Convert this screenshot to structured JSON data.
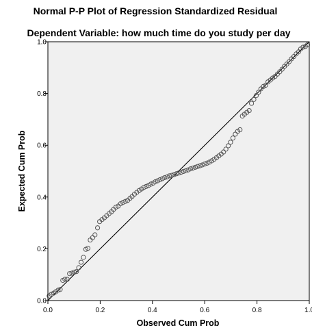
{
  "chart_data": {
    "type": "scatter",
    "title": "Normal P-P Plot of Regression Standardized Residual",
    "subtitle": "Dependent Variable: how much time do you study per day",
    "xlabel": "Observed Cum Prob",
    "ylabel": "Expected Cum Prob",
    "xlim": [
      0.0,
      1.0
    ],
    "ylim": [
      0.0,
      1.0
    ],
    "x_ticks": [
      "0.0",
      "0.2",
      "0.4",
      "0.6",
      "0.8",
      "1.0"
    ],
    "y_ticks": [
      "0.0",
      "0.2",
      "0.4",
      "0.6",
      "0.8",
      "1.0"
    ],
    "x_tick_values": [
      0.0,
      0.2,
      0.4,
      0.6,
      0.8,
      1.0
    ],
    "y_tick_values": [
      0.0,
      0.2,
      0.4,
      0.6,
      0.8,
      1.0
    ],
    "grid": false,
    "plot_background": "#f0f0f0",
    "marker_color": "#555555",
    "reference_line": [
      [
        0.0,
        0.0
      ],
      [
        1.0,
        1.0
      ]
    ],
    "points": [
      [
        0.005,
        0.018
      ],
      [
        0.013,
        0.024
      ],
      [
        0.022,
        0.029
      ],
      [
        0.03,
        0.034
      ],
      [
        0.039,
        0.04
      ],
      [
        0.047,
        0.043
      ],
      [
        0.057,
        0.078
      ],
      [
        0.065,
        0.082
      ],
      [
        0.074,
        0.082
      ],
      [
        0.083,
        0.104
      ],
      [
        0.092,
        0.106
      ],
      [
        0.101,
        0.11
      ],
      [
        0.109,
        0.112
      ],
      [
        0.118,
        0.127
      ],
      [
        0.127,
        0.148
      ],
      [
        0.136,
        0.167
      ],
      [
        0.145,
        0.198
      ],
      [
        0.153,
        0.202
      ],
      [
        0.162,
        0.234
      ],
      [
        0.171,
        0.243
      ],
      [
        0.18,
        0.254
      ],
      [
        0.19,
        0.281
      ],
      [
        0.198,
        0.305
      ],
      [
        0.207,
        0.313
      ],
      [
        0.216,
        0.32
      ],
      [
        0.225,
        0.328
      ],
      [
        0.234,
        0.336
      ],
      [
        0.243,
        0.343
      ],
      [
        0.251,
        0.352
      ],
      [
        0.26,
        0.361
      ],
      [
        0.269,
        0.365
      ],
      [
        0.278,
        0.374
      ],
      [
        0.287,
        0.379
      ],
      [
        0.296,
        0.383
      ],
      [
        0.305,
        0.387
      ],
      [
        0.314,
        0.395
      ],
      [
        0.322,
        0.402
      ],
      [
        0.331,
        0.411
      ],
      [
        0.34,
        0.418
      ],
      [
        0.349,
        0.425
      ],
      [
        0.358,
        0.431
      ],
      [
        0.367,
        0.437
      ],
      [
        0.376,
        0.441
      ],
      [
        0.385,
        0.445
      ],
      [
        0.394,
        0.45
      ],
      [
        0.403,
        0.454
      ],
      [
        0.411,
        0.459
      ],
      [
        0.42,
        0.463
      ],
      [
        0.429,
        0.467
      ],
      [
        0.438,
        0.471
      ],
      [
        0.447,
        0.475
      ],
      [
        0.456,
        0.478
      ],
      [
        0.465,
        0.482
      ],
      [
        0.474,
        0.484
      ],
      [
        0.483,
        0.487
      ],
      [
        0.492,
        0.49
      ],
      [
        0.501,
        0.493
      ],
      [
        0.51,
        0.496
      ],
      [
        0.519,
        0.499
      ],
      [
        0.528,
        0.502
      ],
      [
        0.537,
        0.505
      ],
      [
        0.546,
        0.509
      ],
      [
        0.555,
        0.512
      ],
      [
        0.564,
        0.515
      ],
      [
        0.573,
        0.518
      ],
      [
        0.582,
        0.521
      ],
      [
        0.591,
        0.524
      ],
      [
        0.6,
        0.528
      ],
      [
        0.609,
        0.531
      ],
      [
        0.618,
        0.535
      ],
      [
        0.627,
        0.54
      ],
      [
        0.636,
        0.546
      ],
      [
        0.645,
        0.552
      ],
      [
        0.654,
        0.559
      ],
      [
        0.663,
        0.566
      ],
      [
        0.672,
        0.574
      ],
      [
        0.681,
        0.585
      ],
      [
        0.69,
        0.598
      ],
      [
        0.699,
        0.612
      ],
      [
        0.708,
        0.628
      ],
      [
        0.717,
        0.643
      ],
      [
        0.726,
        0.654
      ],
      [
        0.735,
        0.66
      ],
      [
        0.744,
        0.713
      ],
      [
        0.752,
        0.72
      ],
      [
        0.761,
        0.727
      ],
      [
        0.77,
        0.734
      ],
      [
        0.779,
        0.762
      ],
      [
        0.788,
        0.777
      ],
      [
        0.797,
        0.792
      ],
      [
        0.806,
        0.805
      ],
      [
        0.815,
        0.818
      ],
      [
        0.824,
        0.827
      ],
      [
        0.833,
        0.832
      ],
      [
        0.842,
        0.845
      ],
      [
        0.851,
        0.852
      ],
      [
        0.86,
        0.86
      ],
      [
        0.869,
        0.866
      ],
      [
        0.878,
        0.875
      ],
      [
        0.887,
        0.884
      ],
      [
        0.896,
        0.894
      ],
      [
        0.905,
        0.905
      ],
      [
        0.914,
        0.914
      ],
      [
        0.923,
        0.923
      ],
      [
        0.932,
        0.934
      ],
      [
        0.941,
        0.943
      ],
      [
        0.95,
        0.953
      ],
      [
        0.959,
        0.961
      ],
      [
        0.967,
        0.972
      ],
      [
        0.976,
        0.979
      ],
      [
        0.985,
        0.982
      ],
      [
        0.993,
        0.988
      ]
    ]
  }
}
